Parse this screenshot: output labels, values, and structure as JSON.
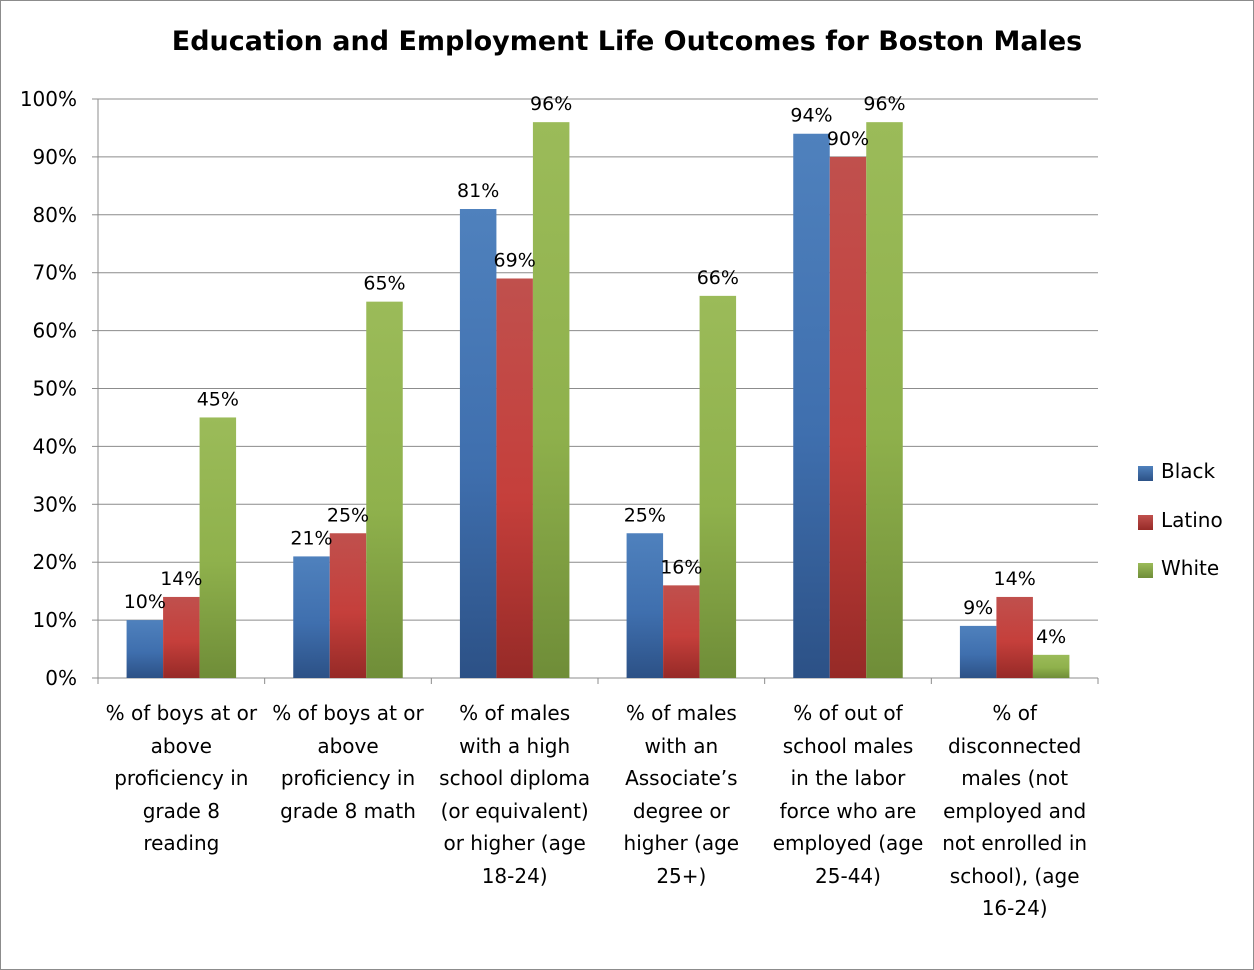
{
  "chart_data": {
    "type": "bar",
    "title": "Education and Employment Life Outcomes for Boston Males",
    "xlabel": "",
    "ylabel": "",
    "ylim": [
      0,
      1
    ],
    "y_ticks": [
      "0%",
      "10%",
      "20%",
      "30%",
      "40%",
      "50%",
      "60%",
      "70%",
      "80%",
      "90%",
      "100%"
    ],
    "grid": true,
    "legend_position": "right",
    "categories": [
      "% of boys at or above proficiency in grade 8 reading",
      "% of boys at or above proficiency in grade 8 math",
      "% of males with a high school diploma (or equivalent) or higher (age 18-24)",
      "% of males with an Associate’s degree or higher (age 25+)",
      "% of out of school males in the labor force who are employed (age 25-44)",
      "% of disconnected males (not employed and not enrolled in school), (age 16-24)"
    ],
    "category_label_lines": [
      "% of boys at or\nabove\nproficiency in\ngrade 8\nreading",
      "% of boys at or\nabove\nproficiency in\ngrade 8 math",
      "% of males\nwith a high\nschool diploma\n(or equivalent)\nor higher (age\n18-24)",
      "% of males\nwith an\nAssociate’s\ndegree or\nhigher (age\n25+)",
      "% of out of\nschool males\nin the labor\nforce who are\nemployed (age\n25-44)",
      "% of\ndisconnected\nmales (not\nemployed and\nnot enrolled in\nschool), (age\n16-24)"
    ],
    "series": [
      {
        "name": "Black",
        "color": "#4f81bd",
        "values": [
          0.1,
          0.21,
          0.81,
          0.25,
          0.94,
          0.09
        ],
        "labels": [
          "10%",
          "21%",
          "81%",
          "25%",
          "94%",
          "9%"
        ]
      },
      {
        "name": "Latino",
        "color": "#c0504d",
        "values": [
          0.14,
          0.25,
          0.69,
          0.16,
          0.9,
          0.14
        ],
        "labels": [
          "14%",
          "25%",
          "69%",
          "16%",
          "90%",
          "14%"
        ]
      },
      {
        "name": "White",
        "color": "#9bbb59",
        "values": [
          0.45,
          0.65,
          0.96,
          0.66,
          0.96,
          0.04
        ],
        "labels": [
          "45%",
          "65%",
          "96%",
          "66%",
          "96%",
          "4%"
        ]
      }
    ]
  }
}
